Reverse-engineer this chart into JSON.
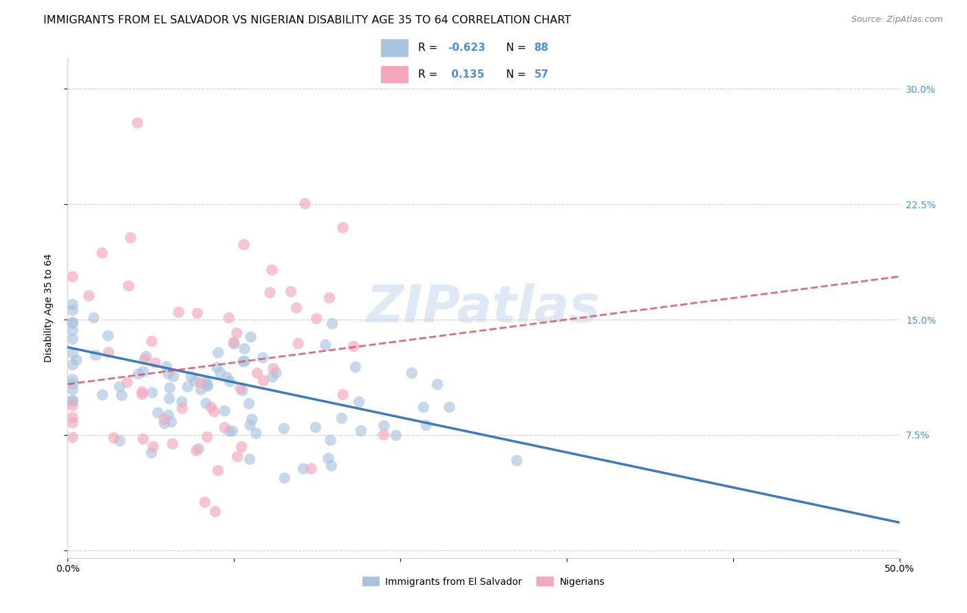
{
  "title": "IMMIGRANTS FROM EL SALVADOR VS NIGERIAN DISABILITY AGE 35 TO 64 CORRELATION CHART",
  "source": "Source: ZipAtlas.com",
  "ylabel": "Disability Age 35 to 64",
  "xlim": [
    0.0,
    0.5
  ],
  "ylim": [
    -0.005,
    0.32
  ],
  "x_ticks": [
    0.0,
    0.1,
    0.2,
    0.3,
    0.4,
    0.5
  ],
  "y_ticks": [
    0.0,
    0.075,
    0.15,
    0.225,
    0.3
  ],
  "legend_labels": [
    "Immigrants from El Salvador",
    "Nigerians"
  ],
  "legend_R_blue": "-0.623",
  "legend_N_blue": "88",
  "legend_R_pink": "0.135",
  "legend_N_pink": "57",
  "blue_scatter_color": "#a8c4e0",
  "pink_scatter_color": "#f4a7b9",
  "blue_line_color": "#3a7abf",
  "pink_line_color": "#d9536a",
  "right_tick_color": "#4a90d9",
  "watermark": "ZIPatlas",
  "title_fontsize": 11.5,
  "axis_label_fontsize": 10,
  "tick_fontsize": 10,
  "blue_line_start_x": 0.0,
  "blue_line_start_y": 0.132,
  "blue_line_end_x": 0.5,
  "blue_line_end_y": 0.018,
  "pink_line_start_x": 0.0,
  "pink_line_start_y": 0.108,
  "pink_line_end_x": 0.5,
  "pink_line_end_y": 0.178
}
